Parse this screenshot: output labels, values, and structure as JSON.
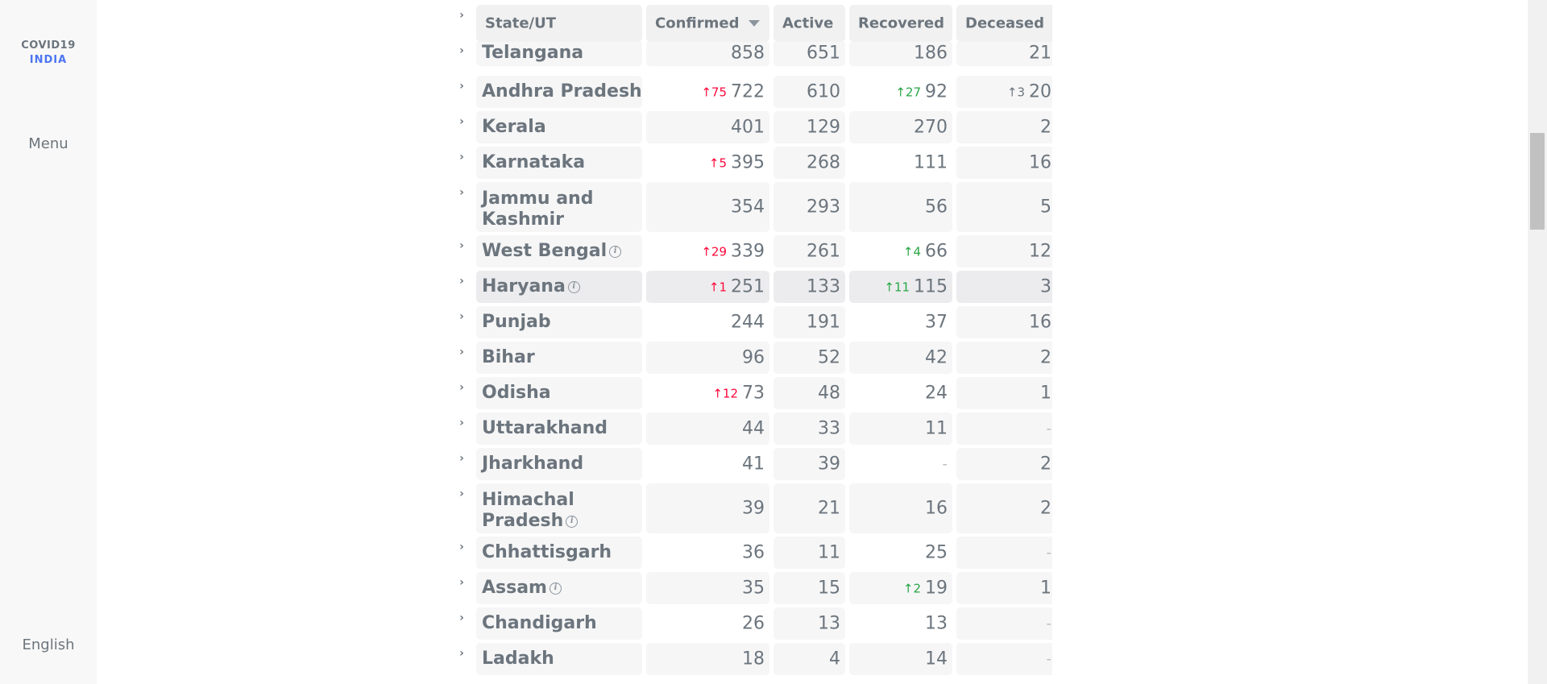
{
  "sidebar": {
    "logo_top": "COVID19",
    "logo_bottom": "INDIA",
    "menu_label": "Menu",
    "language_label": "English"
  },
  "table": {
    "headers": {
      "state": "State/UT",
      "confirmed": "Confirmed",
      "active": "Active",
      "recovered": "Recovered",
      "deceased": "Deceased"
    },
    "rows": [
      {
        "state": "Telangana",
        "confirmed": "858",
        "confirmed_delta": "",
        "active": "651",
        "recovered": "186",
        "recovered_delta": "",
        "deceased": "21",
        "deceased_delta": ""
      },
      {
        "state": "Andhra Pradesh",
        "confirmed": "722",
        "confirmed_delta": "↑75",
        "active": "610",
        "recovered": "92",
        "recovered_delta": "↑27",
        "deceased": "20",
        "deceased_delta": "↑3"
      },
      {
        "state": "Kerala",
        "confirmed": "401",
        "confirmed_delta": "",
        "active": "129",
        "recovered": "270",
        "recovered_delta": "",
        "deceased": "2",
        "deceased_delta": ""
      },
      {
        "state": "Karnataka",
        "confirmed": "395",
        "confirmed_delta": "↑5",
        "active": "268",
        "recovered": "111",
        "recovered_delta": "",
        "deceased": "16",
        "deceased_delta": ""
      },
      {
        "state": "Jammu and Kashmir",
        "state_line1": "Jammu and",
        "state_line2": "Kashmir",
        "confirmed": "354",
        "confirmed_delta": "",
        "active": "293",
        "recovered": "56",
        "recovered_delta": "",
        "deceased": "5",
        "deceased_delta": ""
      },
      {
        "state": "West Bengal",
        "confirmed": "339",
        "confirmed_delta": "↑29",
        "active": "261",
        "recovered": "66",
        "recovered_delta": "↑4",
        "deceased": "12",
        "deceased_delta": ""
      },
      {
        "state": "Haryana",
        "confirmed": "251",
        "confirmed_delta": "↑1",
        "active": "133",
        "recovered": "115",
        "recovered_delta": "↑11",
        "deceased": "3",
        "deceased_delta": ""
      },
      {
        "state": "Punjab",
        "confirmed": "244",
        "confirmed_delta": "",
        "active": "191",
        "recovered": "37",
        "recovered_delta": "",
        "deceased": "16",
        "deceased_delta": ""
      },
      {
        "state": "Bihar",
        "confirmed": "96",
        "confirmed_delta": "",
        "active": "52",
        "recovered": "42",
        "recovered_delta": "",
        "deceased": "2",
        "deceased_delta": ""
      },
      {
        "state": "Odisha",
        "confirmed": "73",
        "confirmed_delta": "↑12",
        "active": "48",
        "recovered": "24",
        "recovered_delta": "",
        "deceased": "1",
        "deceased_delta": ""
      },
      {
        "state": "Uttarakhand",
        "confirmed": "44",
        "confirmed_delta": "",
        "active": "33",
        "recovered": "11",
        "recovered_delta": "",
        "deceased": "-",
        "deceased_delta": ""
      },
      {
        "state": "Jharkhand",
        "confirmed": "41",
        "confirmed_delta": "",
        "active": "39",
        "recovered": "-",
        "recovered_delta": "",
        "deceased": "2",
        "deceased_delta": ""
      },
      {
        "state": "Himachal Pradesh",
        "state_line1": "Himachal",
        "state_line2": "Pradesh",
        "confirmed": "39",
        "confirmed_delta": "",
        "active": "21",
        "recovered": "16",
        "recovered_delta": "",
        "deceased": "2",
        "deceased_delta": ""
      },
      {
        "state": "Chhattisgarh",
        "confirmed": "36",
        "confirmed_delta": "",
        "active": "11",
        "recovered": "25",
        "recovered_delta": "",
        "deceased": "-",
        "deceased_delta": ""
      },
      {
        "state": "Assam",
        "confirmed": "35",
        "confirmed_delta": "",
        "active": "15",
        "recovered": "19",
        "recovered_delta": "↑2",
        "deceased": "1",
        "deceased_delta": ""
      },
      {
        "state": "Chandigarh",
        "confirmed": "26",
        "confirmed_delta": "",
        "active": "13",
        "recovered": "13",
        "recovered_delta": "",
        "deceased": "-",
        "deceased_delta": ""
      },
      {
        "state": "Ladakh",
        "confirmed": "18",
        "confirmed_delta": "",
        "active": "4",
        "recovered": "14",
        "recovered_delta": "",
        "deceased": "-",
        "deceased_delta": ""
      }
    ],
    "info_icon_glyph": "i",
    "expand_glyph": "›"
  },
  "colors": {
    "accent_blue": "#4c75f2",
    "confirmed_red": "#ff073a",
    "recovered_green": "#28a745",
    "text_grey": "#6c757d"
  }
}
